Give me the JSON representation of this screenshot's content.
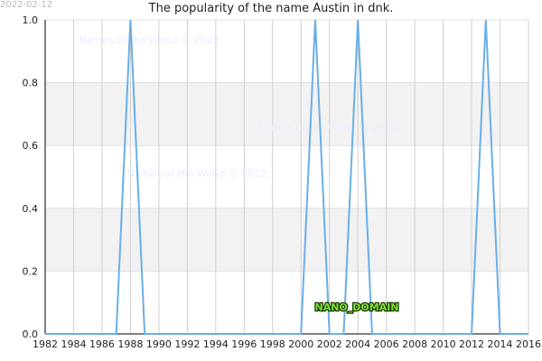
{
  "chart_data": {
    "type": "line",
    "title": "The popularity of the name Austin in dnk.",
    "date": "2022-02-12",
    "watermarks": [
      "Names of the World © 2022",
      "Names of the World © 2022",
      "Names of the World © 2022"
    ],
    "badge": "NANO_DOMAIN",
    "x": [
      1982,
      1983,
      1984,
      1985,
      1986,
      1987,
      1988,
      1989,
      1990,
      1991,
      1992,
      1993,
      1994,
      1995,
      1996,
      1997,
      1998,
      1999,
      2000,
      2001,
      2002,
      2003,
      2004,
      2005,
      2006,
      2007,
      2008,
      2009,
      2010,
      2011,
      2012,
      2013,
      2014,
      2015,
      2016
    ],
    "series": [
      {
        "name": "Austin",
        "color": "#6aaee8",
        "values": [
          0,
          0,
          0,
          0,
          0,
          0,
          1,
          0,
          0,
          0,
          0,
          0,
          0,
          0,
          0,
          0,
          0,
          0,
          0,
          1,
          0,
          0,
          1,
          0,
          0,
          0,
          0,
          0,
          0,
          0,
          0,
          1,
          0,
          0,
          0
        ]
      }
    ],
    "xlim": [
      1982,
      2016
    ],
    "xticks": [
      1982,
      1984,
      1986,
      1988,
      1990,
      1992,
      1994,
      1996,
      1998,
      2000,
      2002,
      2004,
      2006,
      2008,
      2010,
      2012,
      2014,
      2016
    ],
    "ylim": [
      0,
      1
    ],
    "yticks": [
      {
        "value": 0,
        "label": "0.0"
      },
      0.2,
      0.4,
      0.6,
      0.8,
      {
        "value": 1,
        "label": "1.0"
      }
    ],
    "grid": true
  }
}
